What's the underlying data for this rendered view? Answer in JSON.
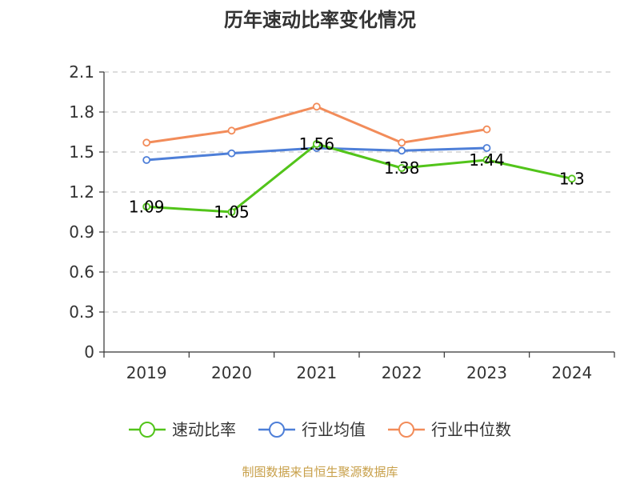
{
  "chart_data": {
    "type": "line",
    "title": "历年速动比率变化情况",
    "categories": [
      "2019",
      "2020",
      "2021",
      "2022",
      "2023",
      "2024"
    ],
    "ylim": [
      0,
      2.1
    ],
    "yticks": [
      "0",
      "0.3",
      "0.6",
      "0.9",
      "1.2",
      "1.5",
      "1.8",
      "2.1"
    ],
    "grid": true,
    "legend_position": "bottom",
    "series": [
      {
        "name": "速动比率",
        "color": "#52c41a",
        "values": [
          1.09,
          1.05,
          1.56,
          1.38,
          1.44,
          1.3
        ],
        "labels": [
          "1.09",
          "1.05",
          "1.56",
          "1.38",
          "1.44",
          "1.3"
        ]
      },
      {
        "name": "行业均值",
        "color": "#4e7fd8",
        "values": [
          1.44,
          1.49,
          1.53,
          1.51,
          1.53,
          null
        ]
      },
      {
        "name": "行业中位数",
        "color": "#f28c5a",
        "values": [
          1.57,
          1.66,
          1.84,
          1.57,
          1.67,
          null
        ]
      }
    ]
  },
  "source": "制图数据来自恒生聚源数据库"
}
